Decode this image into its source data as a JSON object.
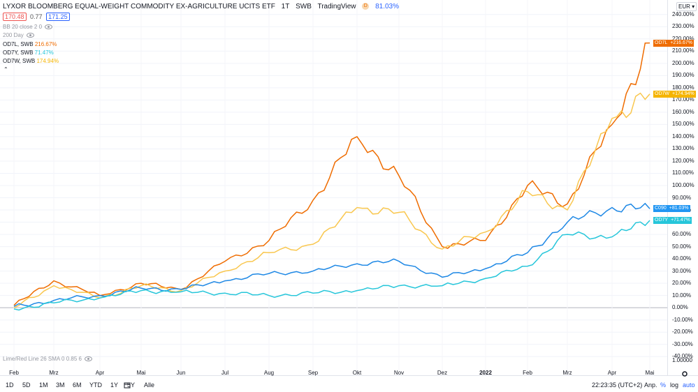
{
  "header": {
    "title": "LYXOR BLOOMBERG EQUAL-WEIGHT COMMODITY EX-AGRICULTURE UCITS ETF",
    "interval": "1T",
    "exchange": "SWB",
    "source": "TradingView",
    "d_badge": "D",
    "change": "81.03%",
    "bid": "170.48",
    "spread": "0.77",
    "ask": "171.25"
  },
  "indicators": {
    "bb": "BB 20 close 2 0",
    "ma": "200 Day",
    "bottom": "Lime/Red Line 26 SMA 0 0.85 6"
  },
  "legend": [
    {
      "name": "OD7L, SWB",
      "value": "216.67%",
      "color": "#ef6c00"
    },
    {
      "name": "OD7Y, SWB",
      "value": "71.47%",
      "color": "#26c6da"
    },
    {
      "name": "OD7W, SWB",
      "value": "174.94%",
      "color": "#f9c74f"
    }
  ],
  "axis": {
    "currency": "EUR",
    "y_labels": [
      "240.00%",
      "230.00%",
      "220.00%",
      "210.00%",
      "200.00%",
      "190.00%",
      "180.00%",
      "170.00%",
      "160.00%",
      "150.00%",
      "140.00%",
      "130.00%",
      "120.00%",
      "110.00%",
      "100.00%",
      "90.00%",
      "80.00%",
      "70.00%",
      "60.00%",
      "50.00%",
      "40.00%",
      "30.00%",
      "20.00%",
      "10.00%",
      "0.00%",
      "-10.00%",
      "-20.00%",
      "-30.00%",
      "-40.00%"
    ],
    "scale_label": "1.00000",
    "x_labels": [
      "Feb",
      "Mrz",
      "Apr",
      "Mai",
      "Jun",
      "Jul",
      "Aug",
      "Sep",
      "Okt",
      "Nov",
      "Dez",
      "2022",
      "Feb",
      "Mrz",
      "Apr",
      "Mai"
    ]
  },
  "badges": [
    {
      "ticker": "OD7L",
      "value": "+216.67%",
      "color": "#ef6c00"
    },
    {
      "ticker": "OD7W",
      "value": "+174.94%",
      "color": "#f5b400"
    },
    {
      "ticker": "C090",
      "value": "+81.03%",
      "color": "#2196f3"
    },
    {
      "ticker": "OD7Y",
      "value": "+71.47%",
      "color": "#26c6da"
    }
  ],
  "bottom_bar": {
    "ranges": [
      "1D",
      "5D",
      "1M",
      "3M",
      "6M",
      "YTD",
      "1Y",
      "5Y",
      "Alle"
    ],
    "time": "22:23:35 (UTC+2)",
    "adj": "Anp.",
    "pct": "%",
    "log": "log",
    "auto": "auto"
  },
  "chart_data": {
    "type": "line",
    "x": [
      "Feb",
      "Mrz",
      "Apr",
      "Mai",
      "Jun",
      "Jul",
      "Aug",
      "Sep",
      "Okt",
      "Nov",
      "Dez",
      "2022",
      "Feb",
      "Mrz",
      "Apr",
      "Mai"
    ],
    "ylim": [
      -45,
      245
    ],
    "y_unit": "%",
    "series": [
      {
        "name": "OD7L, SWB",
        "color": "#ef6c00",
        "values": [
          2,
          22,
          10,
          20,
          15,
          38,
          55,
          88,
          140,
          108,
          50,
          55,
          100,
          85,
          150,
          216.67
        ]
      },
      {
        "name": "OD7W, SWB",
        "color": "#f9c74f",
        "values": [
          0,
          18,
          8,
          18,
          14,
          30,
          45,
          52,
          82,
          78,
          48,
          62,
          95,
          80,
          155,
          174.94
        ]
      },
      {
        "name": "C090",
        "color": "#1e88e5",
        "values": [
          1,
          6,
          10,
          16,
          15,
          22,
          28,
          30,
          36,
          38,
          25,
          32,
          45,
          70,
          82,
          81.03
        ]
      },
      {
        "name": "OD7Y, SWB",
        "color": "#26c6da",
        "values": [
          -1,
          4,
          8,
          14,
          13,
          12,
          10,
          12,
          14,
          18,
          18,
          24,
          34,
          60,
          58,
          71.47
        ]
      }
    ]
  }
}
